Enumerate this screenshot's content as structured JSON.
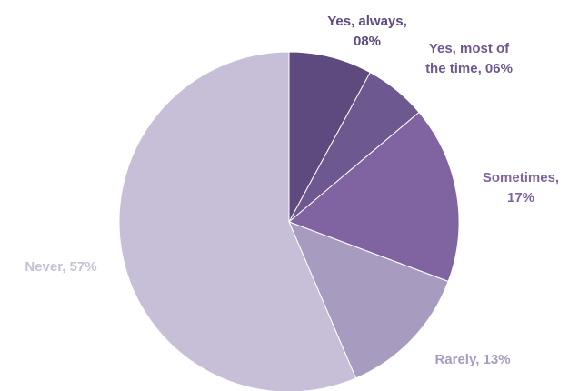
{
  "chart_data": {
    "type": "pie",
    "title": "",
    "start_angle_deg": 0,
    "direction": "clockwise",
    "legend": "none",
    "slices": [
      {
        "label": "Yes, always",
        "value": 8,
        "display": "08%",
        "color": "#5e4a7e",
        "label_color": "#5e4a7e",
        "label_lines": [
          "Yes, always,",
          "08%"
        ]
      },
      {
        "label": "Yes, most of the time",
        "value": 6,
        "display": "06%",
        "color": "#6e5890",
        "label_color": "#6e5890",
        "label_lines": [
          "Yes, most of",
          "the time, 06%"
        ]
      },
      {
        "label": "Sometimes",
        "value": 17,
        "display": "17%",
        "color": "#8064a2",
        "label_color": "#8064a2",
        "label_lines": [
          "Sometimes,",
          "17%"
        ]
      },
      {
        "label": "Rarely",
        "value": 13,
        "display": "13%",
        "color": "#a79bc0",
        "label_color": "#a79bc0",
        "label_lines": [
          "Rarely, 13%"
        ]
      },
      {
        "label": "Never",
        "value": 57,
        "display": "57%",
        "color": "#c6bfd7",
        "label_color": "#c6bfd7",
        "label_lines": [
          "Never, 57%"
        ]
      }
    ]
  }
}
